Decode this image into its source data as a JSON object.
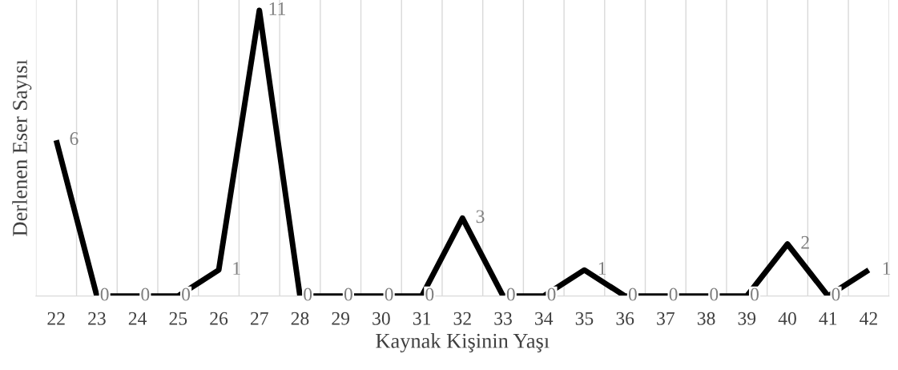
{
  "chart_data": {
    "type": "line",
    "xlabel": "Kaynak Kişinin Yaşı",
    "ylabel": "Derlenen Eser Sayısı",
    "categories": [
      "22",
      "23",
      "24",
      "25",
      "26",
      "27",
      "28",
      "29",
      "30",
      "31",
      "32",
      "33",
      "34",
      "35",
      "36",
      "37",
      "38",
      "39",
      "40",
      "41",
      "42"
    ],
    "series": [
      {
        "color": "#000000",
        "values": [
          6,
          0,
          0,
          0,
          1,
          11,
          0,
          0,
          0,
          0,
          3,
          0,
          0,
          1,
          0,
          0,
          0,
          0,
          2,
          0,
          1
        ]
      }
    ],
    "ylim": [
      0,
      11.4
    ],
    "tick_labels": "x",
    "data_labels": true,
    "grid": "x",
    "legend": false,
    "marker": "none",
    "line_style": "solid"
  }
}
